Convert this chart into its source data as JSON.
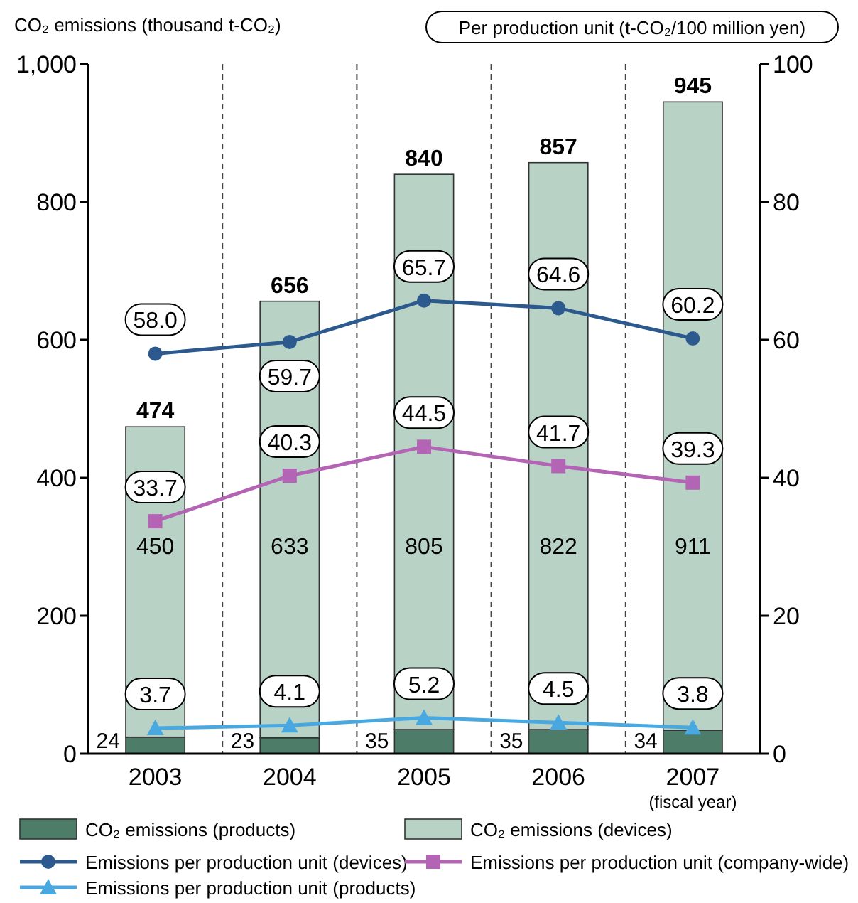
{
  "chart_data": {
    "type": "bar",
    "stacked": true,
    "categories": [
      "2003",
      "2004",
      "2005",
      "2006",
      "2007"
    ],
    "xlabel": "(fiscal year)",
    "ylabel": "CO₂ emissions (thousand t-CO₂)",
    "y2label": "Per production unit (t-CO₂/100 million yen)",
    "ylim": [
      0,
      1000
    ],
    "yticks": [
      0,
      200,
      400,
      600,
      800,
      {
        "value": 1000,
        "label": "1,000"
      }
    ],
    "y2lim": [
      0,
      100
    ],
    "y2ticks": [
      0,
      20,
      40,
      60,
      80,
      100
    ],
    "grid": "x",
    "legend": "bottom",
    "totals": [
      "474",
      "656",
      "840",
      "857",
      "945"
    ],
    "series": [
      {
        "name": "CO₂ emissions (products)",
        "color": "#4d7c69",
        "values": [
          24,
          23,
          35,
          35,
          34
        ],
        "value_labels": [
          "24",
          "23",
          "35",
          "35",
          "34"
        ]
      },
      {
        "name": "CO₂ emissions (devices)",
        "color": "#b8d3c6",
        "values": [
          450,
          633,
          805,
          822,
          911
        ],
        "value_labels": [
          "450",
          "633",
          "805",
          "822",
          "911"
        ]
      },
      {
        "name": "Emissions per production unit (devices)",
        "type": "line",
        "axis": "y2",
        "marker": "circle",
        "color": "#2d5a8e",
        "values": [
          58.0,
          59.7,
          65.7,
          64.6,
          60.2
        ],
        "value_labels": [
          "58.0",
          "59.7",
          "65.7",
          "64.6",
          "60.2"
        ]
      },
      {
        "name": "Emissions per production unit (company-wide)",
        "type": "line",
        "axis": "y2",
        "marker": "square",
        "color": "#b464b4",
        "values": [
          33.7,
          40.3,
          44.5,
          41.7,
          39.3
        ],
        "value_labels": [
          "33.7",
          "40.3",
          "44.5",
          "41.7",
          "39.3"
        ]
      },
      {
        "name": "Emissions per production unit (products)",
        "type": "line",
        "axis": "y2",
        "marker": "triangle",
        "color": "#4aa8e0",
        "values": [
          3.7,
          4.1,
          5.2,
          4.5,
          3.8
        ],
        "value_labels": [
          "3.7",
          "4.1",
          "5.2",
          "4.5",
          "3.8"
        ]
      }
    ]
  }
}
